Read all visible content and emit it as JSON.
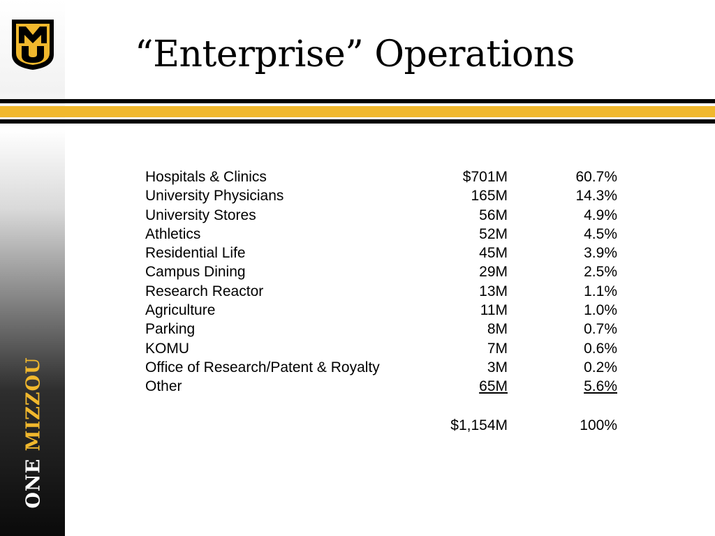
{
  "logo": {
    "letters": "MU",
    "colors": {
      "gold": "#f1b82d",
      "black": "#000000"
    }
  },
  "sidebar": {
    "tagline_part1": "ONE",
    "tagline_part2": "MIZZOU"
  },
  "title": "“Enterprise” Operations",
  "table": {
    "rows": [
      {
        "name": "Hospitals & Clinics",
        "amount": "$701M",
        "percent": "60.7%"
      },
      {
        "name": "University Physicians",
        "amount": "165M",
        "percent": "14.3%"
      },
      {
        "name": "University Stores",
        "amount": "56M",
        "percent": "4.9%"
      },
      {
        "name": "Athletics",
        "amount": "52M",
        "percent": "4.5%"
      },
      {
        "name": "Residential Life",
        "amount": "45M",
        "percent": "3.9%"
      },
      {
        "name": "Campus Dining",
        "amount": "29M",
        "percent": "2.5%"
      },
      {
        "name": "Research Reactor",
        "amount": "13M",
        "percent": "1.1%"
      },
      {
        "name": "Agriculture",
        "amount": "11M",
        "percent": "1.0%"
      },
      {
        "name": "Parking",
        "amount": "8M",
        "percent": "0.7%"
      },
      {
        "name": "KOMU",
        "amount": "7M",
        "percent": "0.6%"
      },
      {
        "name": "Office of Research/Patent & Royalty",
        "amount": "3M",
        "percent": "0.2%"
      },
      {
        "name": "Other",
        "amount": "65M",
        "percent": "5.6%"
      }
    ],
    "total": {
      "amount": "$1,154M",
      "percent": "100%"
    }
  }
}
